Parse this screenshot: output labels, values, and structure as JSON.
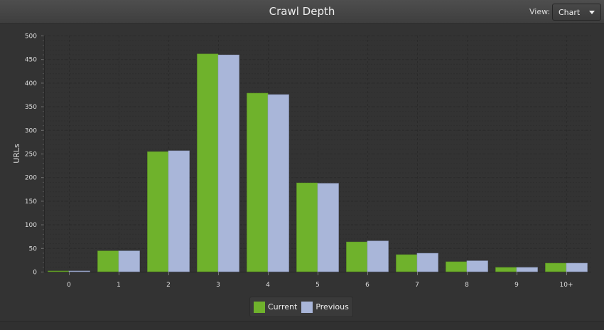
{
  "header": {
    "title": "Crawl Depth",
    "view_label": "View:",
    "view_selected": "Chart"
  },
  "legend": {
    "items": [
      {
        "label": "Current",
        "color": "#6fb22c"
      },
      {
        "label": "Previous",
        "color": "#a9b6d9"
      }
    ]
  },
  "chart_data": {
    "type": "bar",
    "title": "Crawl Depth",
    "xlabel": "",
    "ylabel": "URLs",
    "ylim": [
      0,
      500
    ],
    "yticks": [
      0,
      50,
      100,
      150,
      200,
      250,
      300,
      350,
      400,
      450,
      500
    ],
    "categories": [
      "0",
      "1",
      "2",
      "3",
      "4",
      "5",
      "6",
      "7",
      "8",
      "9",
      "10+"
    ],
    "series": [
      {
        "name": "Current",
        "color": "#6fb22c",
        "values": [
          1,
          44,
          254,
          461,
          378,
          188,
          63,
          36,
          21,
          9,
          18
        ]
      },
      {
        "name": "Previous",
        "color": "#a9b6d9",
        "values": [
          1,
          44,
          256,
          459,
          375,
          187,
          65,
          39,
          23,
          9,
          18
        ]
      }
    ],
    "grid": true,
    "legend_position": "bottom"
  }
}
